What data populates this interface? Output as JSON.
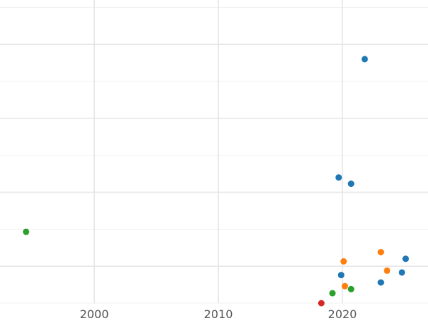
{
  "chart_data": {
    "type": "scatter",
    "title": "",
    "xlabel": "",
    "ylabel": "",
    "xlim": [
      1992.4,
      2026.9
    ],
    "ylim": [
      0,
      8.2
    ],
    "x_ticks": [
      2000,
      2010,
      2020
    ],
    "x_tick_labels": [
      "2000",
      "2010",
      "2020"
    ],
    "y_major_ticks": [
      1,
      3,
      5,
      7
    ],
    "y_minor_ticks": [
      0,
      2,
      4,
      6,
      8
    ],
    "grid": true,
    "legend": "none",
    "series": [
      {
        "color": "#1f77b4",
        "points": [
          {
            "x": 2021.8,
            "y": 6.6
          },
          {
            "x": 2019.7,
            "y": 3.4
          },
          {
            "x": 2020.7,
            "y": 3.23
          },
          {
            "x": 2025.1,
            "y": 1.2
          },
          {
            "x": 2024.8,
            "y": 0.83
          },
          {
            "x": 2019.9,
            "y": 0.76
          },
          {
            "x": 2023.1,
            "y": 0.56
          }
        ]
      },
      {
        "color": "#ff7f0e",
        "points": [
          {
            "x": 2023.1,
            "y": 1.38
          },
          {
            "x": 2020.1,
            "y": 1.13
          },
          {
            "x": 2023.6,
            "y": 0.88
          },
          {
            "x": 2020.2,
            "y": 0.46
          }
        ]
      },
      {
        "color": "#2ca02c",
        "points": [
          {
            "x": 1994.5,
            "y": 1.93
          },
          {
            "x": 2020.7,
            "y": 0.38
          },
          {
            "x": 2019.2,
            "y": 0.27
          }
        ]
      },
      {
        "color": "#d62728",
        "points": [
          {
            "x": 2018.3,
            "y": 0.0
          }
        ]
      }
    ]
  }
}
